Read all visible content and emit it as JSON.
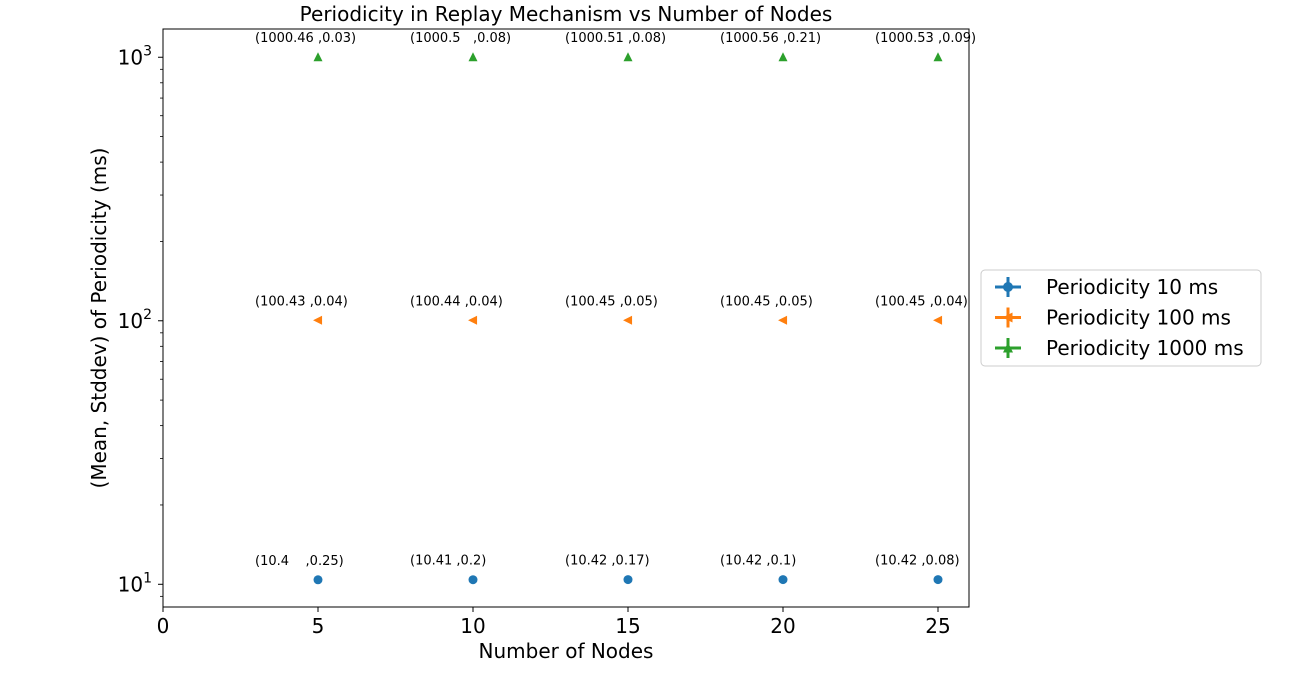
{
  "colors": {
    "series_10": "#1f77b4",
    "series_100": "#ff7f0e",
    "series_1000": "#2ca02c"
  },
  "chart_data": {
    "type": "scatter",
    "title": "Periodicity in Replay Mechanism vs Number of Nodes",
    "xlabel": "Number of Nodes",
    "ylabel": "(Mean, Stddev) of Periodicity (ms)",
    "xlim": [
      0,
      26
    ],
    "ylim": [
      8.2,
      1280
    ],
    "yscale": "log",
    "grid": false,
    "legend_position": "right",
    "x_ticks": [
      0,
      5,
      10,
      15,
      20,
      25
    ],
    "x_tick_labels": [
      "0",
      "5",
      "10",
      "15",
      "20",
      "25"
    ],
    "y_ticks": [
      10,
      100,
      1000
    ],
    "y_tick_labels": [
      {
        "base": "10",
        "exp": "1"
      },
      {
        "base": "10",
        "exp": "2"
      },
      {
        "base": "10",
        "exp": "3"
      }
    ],
    "series": [
      {
        "name": "Periodicity 10 ms",
        "marker": "circle",
        "color_key": "series_10",
        "x": [
          5,
          10,
          15,
          20,
          25
        ],
        "y": [
          10.4,
          10.41,
          10.42,
          10.42,
          10.42
        ],
        "stddev": [
          0.25,
          0.2,
          0.17,
          0.1,
          0.08
        ],
        "annotations": [
          "(10.4    ,0.25)",
          "(10.41 ,0.2)",
          "(10.42 ,0.17)",
          "(10.42 ,0.1)",
          "(10.42 ,0.08)"
        ]
      },
      {
        "name": "Periodicity 100 ms",
        "marker": "triangle-left",
        "color_key": "series_100",
        "x": [
          5,
          10,
          15,
          20,
          25
        ],
        "y": [
          100.43,
          100.44,
          100.45,
          100.45,
          100.45
        ],
        "stddev": [
          0.04,
          0.04,
          0.05,
          0.05,
          0.04
        ],
        "annotations": [
          "(100.43 ,0.04)",
          "(100.44 ,0.04)",
          "(100.45 ,0.05)",
          "(100.45 ,0.05)",
          "(100.45 ,0.04)"
        ]
      },
      {
        "name": "Periodicity 1000 ms",
        "marker": "triangle-up",
        "color_key": "series_1000",
        "x": [
          5,
          10,
          15,
          20,
          25
        ],
        "y": [
          1000.46,
          1000.5,
          1000.51,
          1000.56,
          1000.53
        ],
        "stddev": [
          0.03,
          0.08,
          0.08,
          0.21,
          0.09
        ],
        "annotations": [
          "(1000.46 ,0.03)",
          "(1000.5   ,0.08)",
          "(1000.51 ,0.08)",
          "(1000.56 ,0.21)",
          "(1000.53 ,0.09)"
        ]
      }
    ]
  }
}
